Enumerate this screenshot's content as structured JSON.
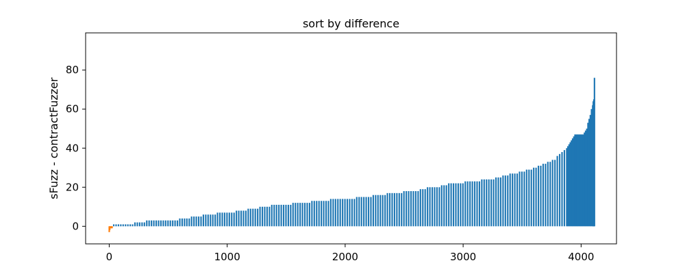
{
  "chart_data": {
    "type": "bar",
    "title": "sort by difference",
    "xlabel": "",
    "ylabel": "sFuzz - contractFuzzer",
    "xlim": [
      -200,
      4300
    ],
    "ylim": [
      -9,
      99
    ],
    "xticks": [
      0,
      1000,
      2000,
      3000,
      4000
    ],
    "yticks": [
      0,
      20,
      40,
      60,
      80
    ],
    "grid": false,
    "legend": "none",
    "bar_width": 16,
    "series": [
      {
        "color": "#1f77b4",
        "bars": [
          [
            40,
            1
          ],
          [
            60,
            1
          ],
          [
            80,
            1
          ],
          [
            100,
            1
          ],
          [
            120,
            1
          ],
          [
            140,
            1
          ],
          [
            160,
            1
          ],
          [
            180,
            1
          ],
          [
            200,
            1
          ],
          [
            220,
            2
          ],
          [
            240,
            2
          ],
          [
            260,
            2
          ],
          [
            280,
            2
          ],
          [
            300,
            2
          ],
          [
            320,
            3
          ],
          [
            340,
            3
          ],
          [
            360,
            3
          ],
          [
            380,
            3
          ],
          [
            400,
            3
          ],
          [
            420,
            3
          ],
          [
            440,
            3
          ],
          [
            460,
            3
          ],
          [
            480,
            3
          ],
          [
            500,
            3
          ],
          [
            520,
            3
          ],
          [
            540,
            3
          ],
          [
            560,
            3
          ],
          [
            580,
            3
          ],
          [
            600,
            4
          ],
          [
            620,
            4
          ],
          [
            640,
            4
          ],
          [
            660,
            4
          ],
          [
            680,
            4
          ],
          [
            700,
            5
          ],
          [
            720,
            5
          ],
          [
            740,
            5
          ],
          [
            760,
            5
          ],
          [
            780,
            5
          ],
          [
            800,
            6
          ],
          [
            820,
            6
          ],
          [
            840,
            6
          ],
          [
            860,
            6
          ],
          [
            880,
            6
          ],
          [
            900,
            6
          ],
          [
            920,
            7
          ],
          [
            940,
            7
          ],
          [
            960,
            7
          ],
          [
            980,
            7
          ],
          [
            1000,
            7
          ],
          [
            1020,
            7
          ],
          [
            1040,
            7
          ],
          [
            1060,
            7
          ],
          [
            1080,
            8
          ],
          [
            1100,
            8
          ],
          [
            1120,
            8
          ],
          [
            1140,
            8
          ],
          [
            1160,
            8
          ],
          [
            1180,
            9
          ],
          [
            1200,
            9
          ],
          [
            1220,
            9
          ],
          [
            1240,
            9
          ],
          [
            1260,
            9
          ],
          [
            1280,
            10
          ],
          [
            1300,
            10
          ],
          [
            1320,
            10
          ],
          [
            1340,
            10
          ],
          [
            1360,
            10
          ],
          [
            1380,
            11
          ],
          [
            1400,
            11
          ],
          [
            1420,
            11
          ],
          [
            1440,
            11
          ],
          [
            1460,
            11
          ],
          [
            1480,
            11
          ],
          [
            1500,
            11
          ],
          [
            1520,
            11
          ],
          [
            1540,
            11
          ],
          [
            1560,
            12
          ],
          [
            1580,
            12
          ],
          [
            1600,
            12
          ],
          [
            1620,
            12
          ],
          [
            1640,
            12
          ],
          [
            1660,
            12
          ],
          [
            1680,
            12
          ],
          [
            1700,
            12
          ],
          [
            1720,
            13
          ],
          [
            1740,
            13
          ],
          [
            1760,
            13
          ],
          [
            1780,
            13
          ],
          [
            1800,
            13
          ],
          [
            1820,
            13
          ],
          [
            1840,
            13
          ],
          [
            1860,
            13
          ],
          [
            1880,
            14
          ],
          [
            1900,
            14
          ],
          [
            1920,
            14
          ],
          [
            1940,
            14
          ],
          [
            1960,
            14
          ],
          [
            1980,
            14
          ],
          [
            2000,
            14
          ],
          [
            2020,
            14
          ],
          [
            2040,
            14
          ],
          [
            2060,
            14
          ],
          [
            2080,
            14
          ],
          [
            2100,
            15
          ],
          [
            2120,
            15
          ],
          [
            2140,
            15
          ],
          [
            2160,
            15
          ],
          [
            2180,
            15
          ],
          [
            2200,
            15
          ],
          [
            2220,
            15
          ],
          [
            2240,
            16
          ],
          [
            2260,
            16
          ],
          [
            2280,
            16
          ],
          [
            2300,
            16
          ],
          [
            2320,
            16
          ],
          [
            2340,
            16
          ],
          [
            2360,
            17
          ],
          [
            2380,
            17
          ],
          [
            2400,
            17
          ],
          [
            2420,
            17
          ],
          [
            2440,
            17
          ],
          [
            2460,
            17
          ],
          [
            2480,
            17
          ],
          [
            2500,
            18
          ],
          [
            2520,
            18
          ],
          [
            2540,
            18
          ],
          [
            2560,
            18
          ],
          [
            2580,
            18
          ],
          [
            2600,
            18
          ],
          [
            2620,
            18
          ],
          [
            2640,
            19
          ],
          [
            2660,
            19
          ],
          [
            2680,
            19
          ],
          [
            2700,
            20
          ],
          [
            2720,
            20
          ],
          [
            2740,
            20
          ],
          [
            2760,
            20
          ],
          [
            2780,
            20
          ],
          [
            2800,
            20
          ],
          [
            2820,
            21
          ],
          [
            2840,
            21
          ],
          [
            2860,
            21
          ],
          [
            2880,
            22
          ],
          [
            2900,
            22
          ],
          [
            2920,
            22
          ],
          [
            2940,
            22
          ],
          [
            2960,
            22
          ],
          [
            2980,
            22
          ],
          [
            3000,
            22
          ],
          [
            3020,
            23
          ],
          [
            3040,
            23
          ],
          [
            3060,
            23
          ],
          [
            3080,
            23
          ],
          [
            3100,
            23
          ],
          [
            3120,
            23
          ],
          [
            3140,
            23
          ],
          [
            3160,
            24
          ],
          [
            3180,
            24
          ],
          [
            3200,
            24
          ],
          [
            3220,
            24
          ],
          [
            3240,
            24
          ],
          [
            3260,
            24
          ],
          [
            3280,
            25
          ],
          [
            3300,
            25
          ],
          [
            3320,
            25
          ],
          [
            3340,
            26
          ],
          [
            3360,
            26
          ],
          [
            3380,
            26
          ],
          [
            3400,
            27
          ],
          [
            3420,
            27
          ],
          [
            3440,
            27
          ],
          [
            3460,
            27
          ],
          [
            3480,
            28
          ],
          [
            3500,
            28
          ],
          [
            3520,
            28
          ],
          [
            3540,
            29
          ],
          [
            3560,
            29
          ],
          [
            3580,
            29
          ],
          [
            3600,
            30
          ],
          [
            3620,
            30
          ],
          [
            3640,
            31
          ],
          [
            3660,
            31
          ],
          [
            3680,
            32
          ],
          [
            3700,
            32
          ],
          [
            3720,
            33
          ],
          [
            3740,
            33
          ],
          [
            3760,
            34
          ],
          [
            3780,
            34
          ],
          [
            3800,
            36
          ],
          [
            3820,
            37
          ],
          [
            3840,
            38
          ],
          [
            3860,
            39
          ],
          [
            3880,
            40
          ],
          [
            3890,
            41
          ],
          [
            3900,
            42
          ],
          [
            3910,
            43
          ],
          [
            3920,
            44
          ],
          [
            3930,
            45
          ],
          [
            3940,
            46
          ],
          [
            3950,
            47
          ],
          [
            3960,
            47
          ],
          [
            3970,
            47
          ],
          [
            3980,
            47
          ],
          [
            3990,
            47
          ],
          [
            4000,
            47
          ],
          [
            4010,
            47
          ],
          [
            4020,
            47
          ],
          [
            4030,
            48
          ],
          [
            4040,
            49
          ],
          [
            4050,
            50
          ],
          [
            4060,
            53
          ],
          [
            4070,
            55
          ],
          [
            4080,
            57
          ],
          [
            4090,
            60
          ],
          [
            4100,
            62
          ],
          [
            4105,
            64
          ],
          [
            4110,
            65
          ],
          [
            4115,
            76
          ]
        ]
      },
      {
        "color": "#ff7f0e",
        "bars": [
          [
            2,
            -3
          ],
          [
            6,
            -2
          ],
          [
            10,
            -1
          ],
          [
            14,
            -1
          ],
          [
            18,
            -1
          ],
          [
            22,
            -1
          ],
          [
            26,
            -1
          ]
        ]
      }
    ]
  }
}
